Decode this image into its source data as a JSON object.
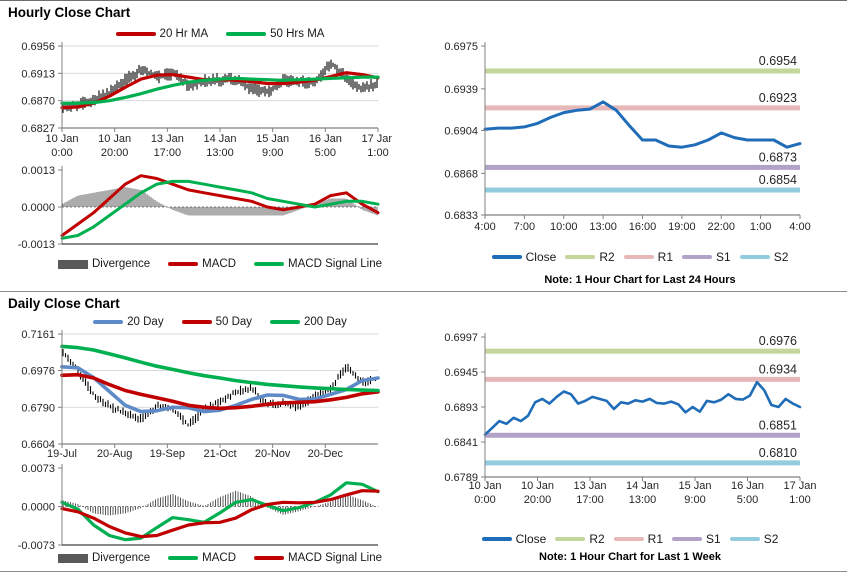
{
  "page": {
    "hourly_section_title": "Hourly Close Chart",
    "daily_section_title": "Daily Close Chart"
  },
  "colors": {
    "candle": "#000000",
    "red_line": "#C00000",
    "green_line": "#00B050",
    "blue_ma": "#5E8BC8",
    "close_blue": "#1F6DB8",
    "r2": "#C3D69B",
    "r1": "#E6B9B8",
    "s1": "#B3A2C7",
    "s2": "#93CDDD",
    "divergence": "#595959",
    "grid": "#D9D9D9",
    "axis": "#808080",
    "text": "#262626"
  },
  "chart_data": [
    {
      "id": "hourly_price",
      "type": "candlestick-line",
      "y_range": [
        0.6827,
        0.6956
      ],
      "y_ticks": [
        "0.6956",
        "0.6913",
        "0.6870",
        "0.6827"
      ],
      "x_labels": [
        [
          "10 Jan",
          "0:00"
        ],
        [
          "10 Jan",
          "20:00"
        ],
        [
          "13 Jan",
          "17:00"
        ],
        [
          "14 Jan",
          "13:00"
        ],
        [
          "15 Jan",
          "9:00"
        ],
        [
          "16 Jan",
          "5:00"
        ],
        [
          "17 Jan",
          "1:00"
        ]
      ],
      "series": [
        {
          "name": "Close",
          "kind": "candle",
          "color_ref": "candle",
          "values": [
            0.6857,
            0.6864,
            0.6872,
            0.6882,
            0.6902,
            0.6919,
            0.6907,
            0.6913,
            0.6894,
            0.6901,
            0.6903,
            0.6903,
            0.6888,
            0.6884,
            0.6903,
            0.69,
            0.6898,
            0.693,
            0.6905,
            0.6888,
            0.6898
          ]
        },
        {
          "name": "20 Hr MA",
          "kind": "line",
          "color_ref": "red_line",
          "values": [
            0.6859,
            0.686,
            0.6866,
            0.6877,
            0.6891,
            0.6904,
            0.691,
            0.6911,
            0.6907,
            0.6903,
            0.6903,
            0.6902,
            0.69,
            0.6897,
            0.6897,
            0.6899,
            0.6902,
            0.6908,
            0.6914,
            0.6911,
            0.6906
          ]
        },
        {
          "name": "50 Hrs MA",
          "kind": "line",
          "color_ref": "green_line",
          "values": [
            0.6866,
            0.6866,
            0.6867,
            0.687,
            0.6875,
            0.6881,
            0.6888,
            0.6894,
            0.6899,
            0.6902,
            0.6904,
            0.6905,
            0.6904,
            0.6903,
            0.6902,
            0.6903,
            0.6904,
            0.6905,
            0.6906,
            0.6907,
            0.6907
          ]
        }
      ],
      "legend": [
        {
          "label": "20 Hr MA",
          "color_ref": "red_line",
          "swatch": "line"
        },
        {
          "label": "50 Hrs MA",
          "color_ref": "green_line",
          "swatch": "line"
        }
      ]
    },
    {
      "id": "hourly_macd",
      "type": "macd",
      "y_range": [
        -0.0013,
        0.0013
      ],
      "y_ticks": [
        "0.0013",
        "0.0000",
        "-0.0013"
      ],
      "series": [
        {
          "name": "MACD",
          "kind": "line",
          "color_ref": "red_line",
          "values": [
            -0.001,
            -0.0006,
            -0.0002,
            0.0003,
            0.0008,
            0.0011,
            0.001,
            0.0008,
            0.0006,
            0.0005,
            0.0004,
            0.0003,
            0.0002,
            0.0,
            -0.0001,
            0.0,
            0.0001,
            0.0004,
            0.0005,
            0.0001,
            -0.0002
          ]
        },
        {
          "name": "MACD Signal Line",
          "kind": "line",
          "color_ref": "green_line",
          "values": [
            -0.0011,
            -0.001,
            -0.0007,
            -0.0003,
            0.0001,
            0.0005,
            0.0008,
            0.0009,
            0.0009,
            0.0008,
            0.0007,
            0.0006,
            0.0005,
            0.0003,
            0.0002,
            0.0001,
            0.0,
            0.0001,
            0.0002,
            0.0002,
            0.0001
          ]
        }
      ],
      "divergence": "MACD minus Signal",
      "legend": [
        {
          "label": "Divergence",
          "color_ref": "divergence",
          "swatch": "rect"
        },
        {
          "label": "MACD",
          "color_ref": "red_line",
          "swatch": "line"
        },
        {
          "label": "MACD Signal Line",
          "color_ref": "green_line",
          "swatch": "line"
        }
      ]
    },
    {
      "id": "hourly_sr",
      "type": "line",
      "note": "Note: 1 Hour Chart for Last 24 Hours",
      "y_range": [
        0.6833,
        0.6975
      ],
      "y_ticks": [
        "0.6975",
        "0.6939",
        "0.6904",
        "0.6868",
        "0.6833"
      ],
      "x_labels": [
        [
          "4:00"
        ],
        [
          "7:00"
        ],
        [
          "10:00"
        ],
        [
          "13:00"
        ],
        [
          "16:00"
        ],
        [
          "19:00"
        ],
        [
          "22:00"
        ],
        [
          "1:00"
        ],
        [
          "4:00"
        ]
      ],
      "hlines": [
        {
          "name": "R2",
          "value": 0.6954,
          "label": "0.6954",
          "color_ref": "r2"
        },
        {
          "name": "R1",
          "value": 0.6923,
          "label": "0.6923",
          "color_ref": "r1"
        },
        {
          "name": "S1",
          "value": 0.6873,
          "label": "0.6873",
          "color_ref": "s1"
        },
        {
          "name": "S2",
          "value": 0.6854,
          "label": "0.6854",
          "color_ref": "s2"
        }
      ],
      "series": [
        {
          "name": "Close",
          "kind": "line",
          "color_ref": "close_blue",
          "values": [
            0.6905,
            0.6906,
            0.6906,
            0.6907,
            0.691,
            0.6915,
            0.6919,
            0.6921,
            0.6922,
            0.6928,
            0.6921,
            0.6908,
            0.6896,
            0.6896,
            0.6891,
            0.689,
            0.6892,
            0.6896,
            0.6902,
            0.6898,
            0.6896,
            0.6896,
            0.6896,
            0.689,
            0.6893
          ]
        }
      ],
      "legend": [
        {
          "label": "Close",
          "color_ref": "close_blue",
          "swatch": "line"
        },
        {
          "label": "R2",
          "color_ref": "r2",
          "swatch": "line"
        },
        {
          "label": "R1",
          "color_ref": "r1",
          "swatch": "line"
        },
        {
          "label": "S1",
          "color_ref": "s1",
          "swatch": "line"
        },
        {
          "label": "S2",
          "color_ref": "s2",
          "swatch": "line"
        }
      ]
    },
    {
      "id": "daily_price",
      "type": "candlestick-line",
      "y_range": [
        0.6604,
        0.7161
      ],
      "y_ticks": [
        "0.7161",
        "0.6976",
        "0.6790",
        "0.6604"
      ],
      "x_labels": [
        [
          "19-Jul"
        ],
        [
          "20-Aug"
        ],
        [
          "19-Sep"
        ],
        [
          "21-Oct"
        ],
        [
          "20-Nov"
        ],
        [
          "20-Dec"
        ]
      ],
      "series": [
        {
          "name": "Close",
          "kind": "candle",
          "color_ref": "candle",
          "values": [
            0.707,
            0.6975,
            0.6855,
            0.6795,
            0.6758,
            0.673,
            0.6798,
            0.6778,
            0.67,
            0.6775,
            0.682,
            0.6868,
            0.6888,
            0.68,
            0.681,
            0.679,
            0.6848,
            0.6885,
            0.6998,
            0.6915,
            0.694
          ]
        },
        {
          "name": "20 Day",
          "kind": "line",
          "color_ref": "blue_ma",
          "values": [
            0.6995,
            0.699,
            0.694,
            0.687,
            0.68,
            0.6768,
            0.6772,
            0.679,
            0.6788,
            0.6768,
            0.6775,
            0.68,
            0.683,
            0.6852,
            0.685,
            0.683,
            0.6832,
            0.6855,
            0.688,
            0.6925,
            0.6938
          ]
        },
        {
          "name": "50 Day",
          "kind": "line",
          "color_ref": "red_line",
          "values": [
            0.6952,
            0.6955,
            0.6938,
            0.6905,
            0.6875,
            0.6855,
            0.6838,
            0.682,
            0.68,
            0.679,
            0.6785,
            0.6788,
            0.6795,
            0.6805,
            0.6812,
            0.6815,
            0.6818,
            0.6828,
            0.684,
            0.6858,
            0.6868
          ]
        },
        {
          "name": "200 Day",
          "kind": "line",
          "color_ref": "green_line",
          "values": [
            0.7098,
            0.7092,
            0.708,
            0.706,
            0.704,
            0.7018,
            0.6998,
            0.6982,
            0.6965,
            0.695,
            0.6938,
            0.6925,
            0.6915,
            0.6906,
            0.6899,
            0.6893,
            0.6888,
            0.6884,
            0.688,
            0.6877,
            0.6875
          ]
        }
      ],
      "legend": [
        {
          "label": "20 Day",
          "color_ref": "blue_ma",
          "swatch": "line"
        },
        {
          "label": "50 Day",
          "color_ref": "red_line",
          "swatch": "line"
        },
        {
          "label": "200 Day",
          "color_ref": "green_line",
          "swatch": "line"
        }
      ]
    },
    {
      "id": "daily_macd",
      "type": "macd",
      "y_range": [
        -0.0073,
        0.0073
      ],
      "y_ticks": [
        "0.0073",
        "0.0000",
        "-0.0073"
      ],
      "series": [
        {
          "name": "MACD",
          "kind": "line",
          "color_ref": "green_line",
          "values": [
            0.0008,
            -0.0005,
            -0.0035,
            -0.0055,
            -0.0063,
            -0.006,
            -0.004,
            -0.0021,
            -0.0025,
            -0.003,
            -0.0012,
            0.0008,
            0.0013,
            0.0002,
            -0.0008,
            -0.0002,
            0.0008,
            0.0022,
            0.0045,
            0.0042,
            0.0028
          ]
        },
        {
          "name": "MACD Signal Line",
          "kind": "line",
          "color_ref": "red_line",
          "values": [
            -0.0004,
            -0.001,
            -0.0022,
            -0.0038,
            -0.005,
            -0.0057,
            -0.0055,
            -0.0045,
            -0.0035,
            -0.0031,
            -0.003,
            -0.0022,
            -0.0006,
            0.0004,
            0.0008,
            0.0007,
            0.0008,
            0.0013,
            0.0022,
            0.003,
            0.0029
          ]
        }
      ],
      "divergence": "MACD minus Signal",
      "legend": [
        {
          "label": "Divergence",
          "color_ref": "divergence",
          "swatch": "rect"
        },
        {
          "label": "MACD",
          "color_ref": "green_line",
          "swatch": "line"
        },
        {
          "label": "MACD Signal Line",
          "color_ref": "red_line",
          "swatch": "line"
        }
      ]
    },
    {
      "id": "daily_sr",
      "type": "line",
      "note": "Note: 1 Hour Chart for Last 1 Week",
      "y_range": [
        0.6789,
        0.6997
      ],
      "y_ticks": [
        "0.6997",
        "0.6945",
        "0.6893",
        "0.6841",
        "0.6789"
      ],
      "x_labels": [
        [
          "10 Jan",
          "0:00"
        ],
        [
          "10 Jan",
          "20:00"
        ],
        [
          "13 Jan",
          "17:00"
        ],
        [
          "14 Jan",
          "13:00"
        ],
        [
          "15 Jan",
          "9:00"
        ],
        [
          "16 Jan",
          "5:00"
        ],
        [
          "17 Jan",
          "1:00"
        ]
      ],
      "hlines": [
        {
          "name": "R2",
          "value": 0.6976,
          "label": "0.6976",
          "color_ref": "r2"
        },
        {
          "name": "R1",
          "value": 0.6934,
          "label": "0.6934",
          "color_ref": "r1"
        },
        {
          "name": "S1",
          "value": 0.6851,
          "label": "0.6851",
          "color_ref": "s1"
        },
        {
          "name": "S2",
          "value": 0.681,
          "label": "0.6810",
          "color_ref": "s2"
        }
      ],
      "series": [
        {
          "name": "Close",
          "kind": "line",
          "color_ref": "close_blue",
          "values": [
            0.6852,
            0.6862,
            0.6872,
            0.6868,
            0.6877,
            0.6872,
            0.688,
            0.69,
            0.6905,
            0.6898,
            0.6908,
            0.6916,
            0.6912,
            0.6898,
            0.6902,
            0.6908,
            0.6905,
            0.6902,
            0.689,
            0.69,
            0.6898,
            0.6903,
            0.6901,
            0.6905,
            0.6899,
            0.6898,
            0.6901,
            0.6897,
            0.6885,
            0.6893,
            0.6886,
            0.6902,
            0.69,
            0.6904,
            0.6912,
            0.6905,
            0.6904,
            0.691,
            0.693,
            0.6918,
            0.6896,
            0.6893,
            0.6905,
            0.6898,
            0.6893
          ]
        }
      ],
      "legend": [
        {
          "label": "Close",
          "color_ref": "close_blue",
          "swatch": "line"
        },
        {
          "label": "R2",
          "color_ref": "r2",
          "swatch": "line"
        },
        {
          "label": "R1",
          "color_ref": "r1",
          "swatch": "line"
        },
        {
          "label": "S1",
          "color_ref": "s1",
          "swatch": "line"
        },
        {
          "label": "S2",
          "color_ref": "s2",
          "swatch": "line"
        }
      ]
    }
  ]
}
